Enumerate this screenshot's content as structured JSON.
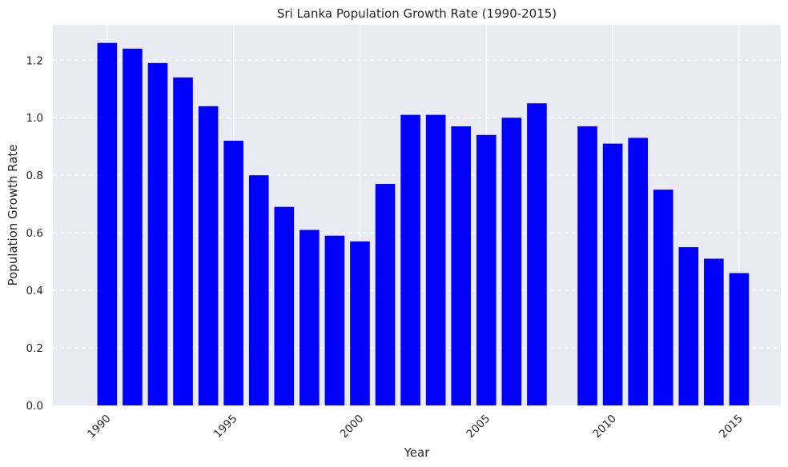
{
  "chart_data": {
    "type": "bar",
    "title": "Sri Lanka Population Growth Rate (1990-2015)",
    "xlabel": "Year",
    "ylabel": "Population Growth Rate",
    "x": [
      1990,
      1991,
      1992,
      1993,
      1994,
      1995,
      1996,
      1997,
      1998,
      1999,
      2000,
      2001,
      2002,
      2003,
      2004,
      2005,
      2006,
      2007,
      2009,
      2010,
      2011,
      2012,
      2013,
      2014,
      2015
    ],
    "values": [
      1.26,
      1.24,
      1.19,
      1.14,
      1.04,
      0.92,
      0.8,
      0.69,
      0.61,
      0.59,
      0.57,
      0.77,
      1.01,
      1.01,
      0.97,
      0.94,
      1.0,
      1.05,
      0.97,
      0.91,
      0.93,
      0.75,
      0.55,
      0.51,
      0.46
    ],
    "xlim": [
      1987.85,
      2016.65
    ],
    "ylim": [
      0,
      1.323
    ],
    "x_ticks": [
      "1990",
      "1995",
      "2000",
      "2005",
      "2010",
      "2015"
    ],
    "y_ticks": [
      "0.0",
      "0.2",
      "0.4",
      "0.6",
      "0.8",
      "1.0",
      "1.2"
    ],
    "x_tick_rotation": 45,
    "grid": true,
    "grid_style": "y dashed, x solid",
    "bar_color": "#0000ff",
    "background_color": "#eaeaf2",
    "grid_color": "#ffffff"
  }
}
